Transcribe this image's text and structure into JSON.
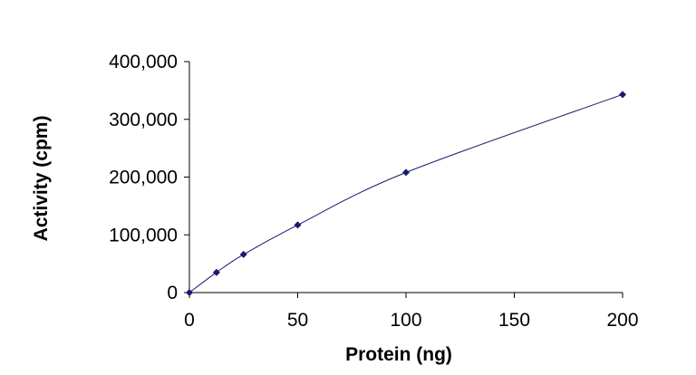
{
  "chart_data": {
    "type": "scatter",
    "title": "",
    "xlabel": "Protein (ng)",
    "ylabel": "Activity (cpm)",
    "xlim": [
      0,
      200
    ],
    "ylim": [
      0,
      400000
    ],
    "x_ticks": [
      0,
      50,
      100,
      150,
      200
    ],
    "y_ticks": [
      0,
      100000,
      200000,
      300000,
      400000
    ],
    "x_tick_labels": [
      "0",
      "50",
      "100",
      "150",
      "200"
    ],
    "y_tick_labels": [
      "0",
      "100,000",
      "200,000",
      "300,000",
      "400,000"
    ],
    "grid": false,
    "legend": "none",
    "series": [
      {
        "x": [
          0,
          12.5,
          25,
          50,
          100,
          200
        ],
        "y": [
          0,
          35000,
          66000,
          117000,
          208000,
          343000
        ],
        "marker": "diamond",
        "line": "smooth",
        "color": "#1a1a6e"
      }
    ]
  }
}
